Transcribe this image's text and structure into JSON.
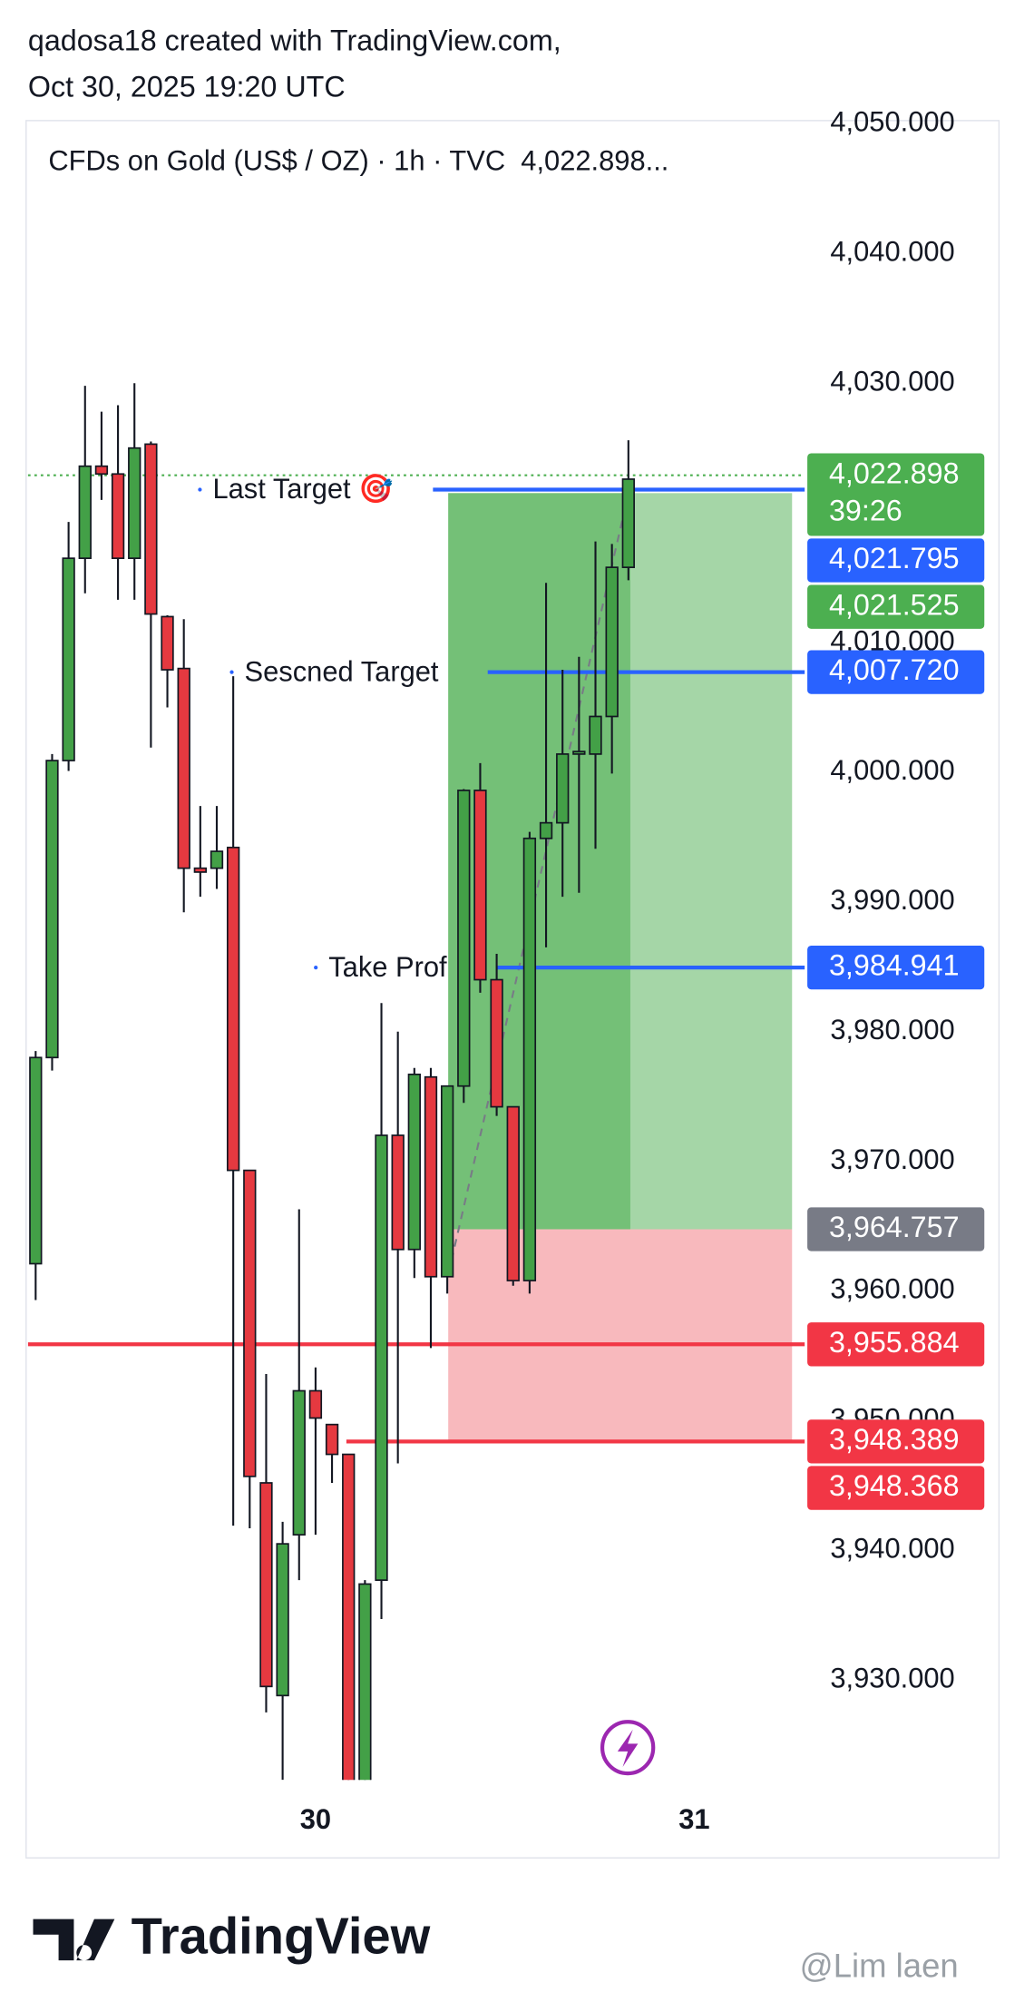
{
  "header": {
    "line1": "qadosa18 created with TradingView.com,",
    "line2": "Oct 30, 2025 19:20 UTC"
  },
  "chart_data": {
    "type": "candlestick",
    "legend": "CFDs on Gold (US$ / OZ) · 1h · TVC  4,022.898...",
    "categories": [
      null,
      null,
      null,
      null,
      null,
      null,
      null,
      null,
      null,
      null,
      null,
      null,
      null,
      null,
      null,
      null,
      null,
      "30",
      null,
      null,
      null,
      null,
      null,
      null,
      null,
      null,
      null,
      null,
      null,
      null,
      null,
      null,
      null,
      null,
      null,
      null,
      null,
      null,
      null,
      null,
      "31"
    ],
    "open": [
      3962.1,
      3978,
      4000.9,
      4016.5,
      4023.6,
      4023,
      4016.5,
      4025.3,
      4012,
      4008,
      3992.6,
      3992.6,
      3994.2,
      3969.3,
      3945.2,
      3928.8,
      3941.2,
      3952.3,
      3949.7,
      3947.4,
      3922,
      3937.7,
      3972,
      3963.2,
      3976.5,
      3961.1,
      3975.8,
      3998.6,
      3984,
      3974.2,
      3960.8,
      3994.9,
      3996.1,
      4001.4,
      4001.4,
      4004.3,
      4015.8,
      null,
      null,
      null,
      null
    ],
    "high": [
      3978.5,
      4001.4,
      4019.3,
      4029.8,
      4027.8,
      4028.3,
      4030,
      4025.5,
      4012.1,
      4011.8,
      3997.4,
      3997.4,
      4007.4,
      3969.3,
      3953.6,
      3942.2,
      3966.3,
      3954.1,
      3949.7,
      3947.4,
      3937.7,
      3982.2,
      3980,
      3977.2,
      3977.2,
      3975.8,
      3998.7,
      4000.7,
      3986,
      3974.2,
      3995.4,
      4014.6,
      4007.9,
      4008.9,
      4017.8,
      4017.6,
      4025.6,
      null,
      null,
      null,
      null
    ],
    "low": [
      3959.3,
      3977,
      4000.1,
      4013.8,
      4021,
      4013.3,
      4013.3,
      4001.9,
      4005,
      3989.2,
      3990.4,
      3991,
      3941.9,
      3941.7,
      3927.5,
      3922.3,
      3937.7,
      3941.2,
      3945.2,
      3920,
      3920,
      3934.7,
      3946.7,
      3961,
      3955.6,
      3959.8,
      3974.5,
      3983,
      3973.5,
      3960.4,
      3959.8,
      3986.5,
      3990.4,
      3990.7,
      3994.1,
      3999.9,
      4014.8,
      null,
      null,
      null,
      null
    ],
    "close": [
      3978,
      4000.9,
      4016.5,
      4023.6,
      4023,
      4016.5,
      4025,
      4012.2,
      4007.9,
      3992.6,
      3992.3,
      3993.9,
      3969.3,
      3945.7,
      3929.5,
      3940.5,
      3952.3,
      3950.2,
      3947.4,
      3922,
      3937.4,
      3972,
      3963.2,
      3976.7,
      3961.1,
      3975.8,
      3998.6,
      3984,
      3974.2,
      3960.8,
      3994.9,
      3996.1,
      4001.4,
      4001.6,
      4004.3,
      4015.8,
      4022.6,
      null,
      null,
      null,
      null
    ],
    "up_color": "#43a047",
    "down_color": "#e53940",
    "ylim": [
      3922.3,
      4050.3
    ],
    "yticks": [
      {
        "value": 3930,
        "label": "3,930.000"
      },
      {
        "value": 3940,
        "label": "3,940.000"
      },
      {
        "value": 3950,
        "label": "3,950.000"
      },
      {
        "value": 3960,
        "label": "3,960.000"
      },
      {
        "value": 3970,
        "label": "3,970.000"
      },
      {
        "value": 3980,
        "label": "3,980.000"
      },
      {
        "value": 3990,
        "label": "3,990.000"
      },
      {
        "value": 4000,
        "label": "4,000.000"
      },
      {
        "value": 4010,
        "label": "4,010.000"
      },
      {
        "value": 4020,
        "label": "4,020.000"
      },
      {
        "value": 4030,
        "label": "4,030.000"
      },
      {
        "value": 4040,
        "label": "4,040.000"
      },
      {
        "value": 4050,
        "label": "4,050.000"
      }
    ],
    "price_labels": [
      {
        "value": 4022.898,
        "label": "4,022.898",
        "countdown": "39:26",
        "color": "#4caf50",
        "line": "dotted"
      },
      {
        "value": 4021.795,
        "label": "4,021.795",
        "color": "#2962ff",
        "line": "solid",
        "annotation": "Last Target 🎯"
      },
      {
        "value": 4021.525,
        "label": "4,021.525",
        "color": "#4caf50"
      },
      {
        "value": 4007.72,
        "label": "4,007.720",
        "color": "#2962ff",
        "line": "solid",
        "annotation": "Sescned Target"
      },
      {
        "value": 3984.941,
        "label": "3,984.941",
        "color": "#2962ff",
        "line": "solid",
        "annotation": "Take Prof"
      },
      {
        "value": 3964.757,
        "label": "3,964.757",
        "color": "#787b86"
      },
      {
        "value": 3955.884,
        "label": "3,955.884",
        "color": "#f23645",
        "line": "solid"
      },
      {
        "value": 3948.389,
        "label": "3,948.389",
        "color": "#f23645",
        "line": "solid"
      },
      {
        "value": 3948.368,
        "label": "3,948.368",
        "color": "#f23645"
      }
    ],
    "position_tool": {
      "entry": 3964.757,
      "target": 4021.525,
      "stop": 3948.389
    }
  },
  "footer": {
    "logo": "TradingView",
    "watermark": "@Lim laen"
  }
}
